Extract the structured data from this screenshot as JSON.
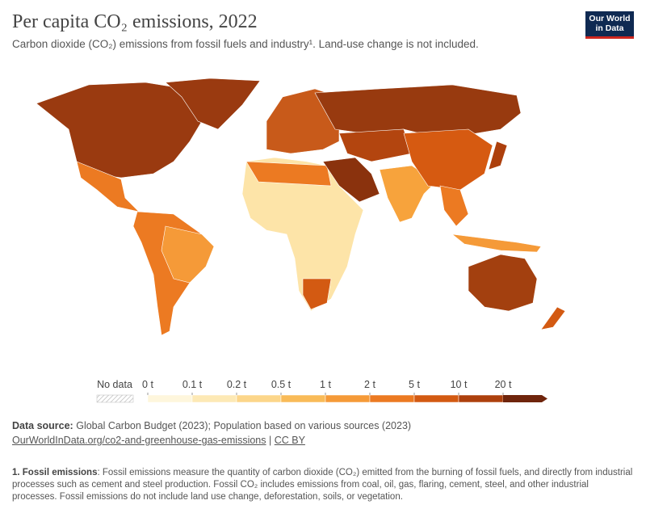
{
  "header": {
    "title": "Per capita CO₂ emissions, 2022",
    "subtitle": "Carbon dioxide (CO₂) emissions from fossil fuels and industry¹. Land-use change is not included.",
    "logo": [
      "Our World",
      "in Data"
    ]
  },
  "legend": {
    "no_data": "No data",
    "ticks": [
      "0 t",
      "0.1 t",
      "0.2 t",
      "0.5 t",
      "1 t",
      "2 t",
      "5 t",
      "10 t",
      "20 t"
    ],
    "colors": [
      "#fef6dc",
      "#fde9b5",
      "#fcd68a",
      "#f9bb58",
      "#f59a38",
      "#ec7a22",
      "#d35a12",
      "#ad400d",
      "#6f250c"
    ]
  },
  "footer": {
    "source_label": "Data source:",
    "source": "Global Carbon Budget (2023); Population based on various sources (2023)",
    "url": "OurWorldInData.org/co2-and-greenhouse-gas-emissions",
    "separator": "|",
    "license": "CC BY"
  },
  "note": {
    "label": "1. Fossil emissions",
    "text": ": Fossil emissions measure the quantity of carbon dioxide (CO₂) emitted from the burning of fossil fuels, and directly from industrial processes such as cement and steel production. Fossil CO₂ includes emissions from coal, oil, gas, flaring, cement, steel, and other industrial processes. Fossil emissions do not include land use change, deforestation, soils, or vegetation."
  }
}
